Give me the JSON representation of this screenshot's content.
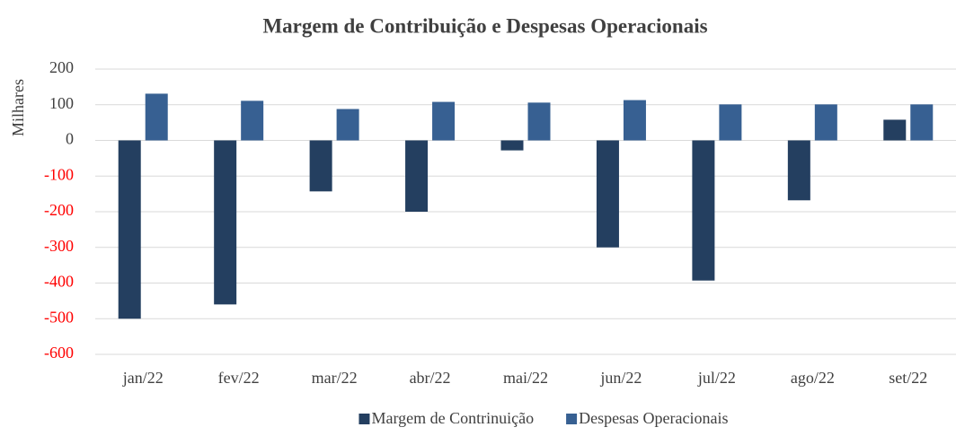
{
  "chart_data": {
    "type": "bar",
    "title": "Margem de Contribuição e Despesas Operacionais",
    "y_label": "Milhares",
    "categories": [
      "jan/22",
      "fev/22",
      "mar/22",
      "abr/22",
      "mai/22",
      "jun/22",
      "jul/22",
      "ago/22",
      "set/22"
    ],
    "series": [
      {
        "name": "Margem de Contrinuição",
        "color": "#243f60",
        "values": [
          -500,
          -460,
          -143,
          -200,
          -28,
          -300,
          -393,
          -168,
          58
        ]
      },
      {
        "name": "Despesas Operacionais",
        "color": "#376092",
        "values": [
          131,
          111,
          88,
          108,
          106,
          113,
          101,
          101,
          101
        ]
      }
    ],
    "ylim": [
      -600,
      200
    ],
    "yticks": [
      -600,
      -500,
      -400,
      -300,
      -200,
      -100,
      0,
      100,
      200
    ],
    "negative_tick_color": "#ff0000",
    "grid": true,
    "legend": "bottom"
  }
}
